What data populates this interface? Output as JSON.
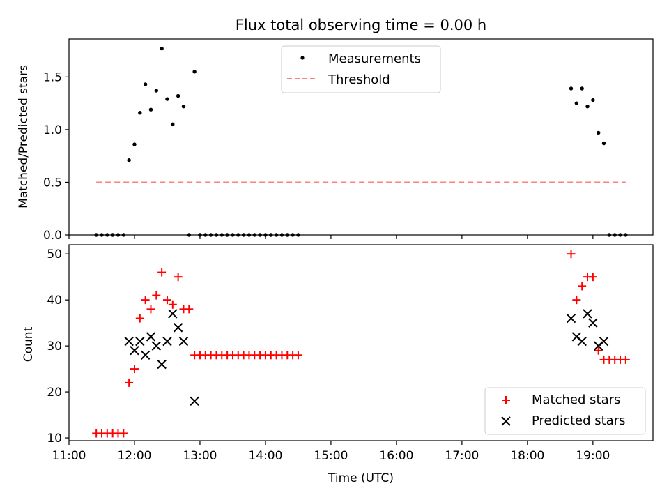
{
  "chart_data": [
    {
      "type": "scatter",
      "title": "Flux total observing time = 0.00 h",
      "xlabel": "",
      "ylabel": "Matched/Predicted stars",
      "xlim": [
        "11:00",
        "19:55"
      ],
      "ylim": [
        0,
        1.86
      ],
      "yticks": [
        0.0,
        0.5,
        1.0,
        1.5
      ],
      "ytick_labels": [
        "0.0",
        "0.5",
        "1.0",
        "1.5"
      ],
      "xtick_labels_visible": false,
      "legend": {
        "placement": "top-center",
        "entries": [
          "Measurements",
          "Threshold"
        ]
      },
      "series": [
        {
          "name": "Measurements",
          "style": "dot",
          "color": "#000000",
          "points": [
            [
              "11:25",
              0
            ],
            [
              "11:30",
              0
            ],
            [
              "11:35",
              0
            ],
            [
              "11:40",
              0
            ],
            [
              "11:45",
              0
            ],
            [
              "11:50",
              0
            ],
            [
              "11:55",
              0.71
            ],
            [
              "12:00",
              0.86
            ],
            [
              "12:05",
              1.16
            ],
            [
              "12:10",
              1.43
            ],
            [
              "12:15",
              1.19
            ],
            [
              "12:20",
              1.37
            ],
            [
              "12:25",
              1.77
            ],
            [
              "12:30",
              1.29
            ],
            [
              "12:35",
              1.05
            ],
            [
              "12:40",
              1.32
            ],
            [
              "12:45",
              1.22
            ],
            [
              "12:50",
              0
            ],
            [
              "12:55",
              1.55
            ],
            [
              "13:00",
              0
            ],
            [
              "13:05",
              0
            ],
            [
              "13:10",
              0
            ],
            [
              "13:15",
              0
            ],
            [
              "13:20",
              0
            ],
            [
              "13:25",
              0
            ],
            [
              "13:30",
              0
            ],
            [
              "13:35",
              0
            ],
            [
              "13:40",
              0
            ],
            [
              "13:45",
              0
            ],
            [
              "13:50",
              0
            ],
            [
              "13:55",
              0
            ],
            [
              "14:00",
              0
            ],
            [
              "14:05",
              0
            ],
            [
              "14:10",
              0
            ],
            [
              "14:15",
              0
            ],
            [
              "14:20",
              0
            ],
            [
              "14:25",
              0
            ],
            [
              "14:30",
              0
            ],
            [
              "18:40",
              1.39
            ],
            [
              "18:45",
              1.25
            ],
            [
              "18:50",
              1.39
            ],
            [
              "18:55",
              1.22
            ],
            [
              "19:00",
              1.28
            ],
            [
              "19:05",
              0.97
            ],
            [
              "19:10",
              0.87
            ],
            [
              "19:15",
              0
            ],
            [
              "19:20",
              0
            ],
            [
              "19:25",
              0
            ],
            [
              "19:30",
              0
            ]
          ]
        },
        {
          "name": "Threshold",
          "style": "dashed-line",
          "color": "#ff7f7f",
          "points": [
            [
              "11:25",
              0.5
            ],
            [
              "19:30",
              0.5
            ]
          ]
        }
      ]
    },
    {
      "type": "scatter",
      "title": "",
      "xlabel": "Time (UTC)",
      "ylabel": "Count",
      "xlim": [
        "11:00",
        "19:55"
      ],
      "ylim": [
        9.4,
        52
      ],
      "yticks": [
        10,
        20,
        30,
        40,
        50
      ],
      "ytick_labels": [
        "10",
        "20",
        "30",
        "40",
        "50"
      ],
      "xticks": [
        "11:00",
        "12:00",
        "13:00",
        "14:00",
        "15:00",
        "16:00",
        "17:00",
        "18:00",
        "19:00"
      ],
      "xtick_labels": [
        "11:00",
        "12:00",
        "13:00",
        "14:00",
        "15:00",
        "16:00",
        "17:00",
        "18:00",
        "19:00"
      ],
      "legend": {
        "placement": "bottom-right",
        "entries": [
          "Matched stars",
          "Predicted stars"
        ]
      },
      "series": [
        {
          "name": "Matched stars",
          "style": "plus",
          "color": "#ff0000",
          "points": [
            [
              "11:25",
              11
            ],
            [
              "11:30",
              11
            ],
            [
              "11:35",
              11
            ],
            [
              "11:40",
              11
            ],
            [
              "11:45",
              11
            ],
            [
              "11:50",
              11
            ],
            [
              "11:55",
              22
            ],
            [
              "12:00",
              25
            ],
            [
              "12:05",
              36
            ],
            [
              "12:10",
              40
            ],
            [
              "12:15",
              38
            ],
            [
              "12:20",
              41
            ],
            [
              "12:25",
              46
            ],
            [
              "12:30",
              40
            ],
            [
              "12:35",
              39
            ],
            [
              "12:40",
              45
            ],
            [
              "12:45",
              38
            ],
            [
              "12:50",
              38
            ],
            [
              "12:55",
              28
            ],
            [
              "13:00",
              28
            ],
            [
              "13:05",
              28
            ],
            [
              "13:10",
              28
            ],
            [
              "13:15",
              28
            ],
            [
              "13:20",
              28
            ],
            [
              "13:25",
              28
            ],
            [
              "13:30",
              28
            ],
            [
              "13:35",
              28
            ],
            [
              "13:40",
              28
            ],
            [
              "13:45",
              28
            ],
            [
              "13:50",
              28
            ],
            [
              "13:55",
              28
            ],
            [
              "14:00",
              28
            ],
            [
              "14:05",
              28
            ],
            [
              "14:10",
              28
            ],
            [
              "14:15",
              28
            ],
            [
              "14:20",
              28
            ],
            [
              "14:25",
              28
            ],
            [
              "14:30",
              28
            ],
            [
              "18:40",
              50
            ],
            [
              "18:45",
              40
            ],
            [
              "18:50",
              43
            ],
            [
              "18:55",
              45
            ],
            [
              "19:00",
              45
            ],
            [
              "19:05",
              29
            ],
            [
              "19:10",
              27
            ],
            [
              "19:15",
              27
            ],
            [
              "19:20",
              27
            ],
            [
              "19:25",
              27
            ],
            [
              "19:30",
              27
            ]
          ]
        },
        {
          "name": "Predicted stars",
          "style": "x",
          "color": "#000000",
          "points": [
            [
              "11:55",
              31
            ],
            [
              "12:00",
              29
            ],
            [
              "12:05",
              31
            ],
            [
              "12:10",
              28
            ],
            [
              "12:15",
              32
            ],
            [
              "12:20",
              30
            ],
            [
              "12:25",
              26
            ],
            [
              "12:30",
              31
            ],
            [
              "12:35",
              37
            ],
            [
              "12:40",
              34
            ],
            [
              "12:45",
              31
            ],
            [
              "12:55",
              18
            ],
            [
              "18:40",
              36
            ],
            [
              "18:45",
              32
            ],
            [
              "18:50",
              31
            ],
            [
              "18:55",
              37
            ],
            [
              "19:00",
              35
            ],
            [
              "19:05",
              30
            ],
            [
              "19:10",
              31
            ]
          ]
        }
      ]
    }
  ]
}
